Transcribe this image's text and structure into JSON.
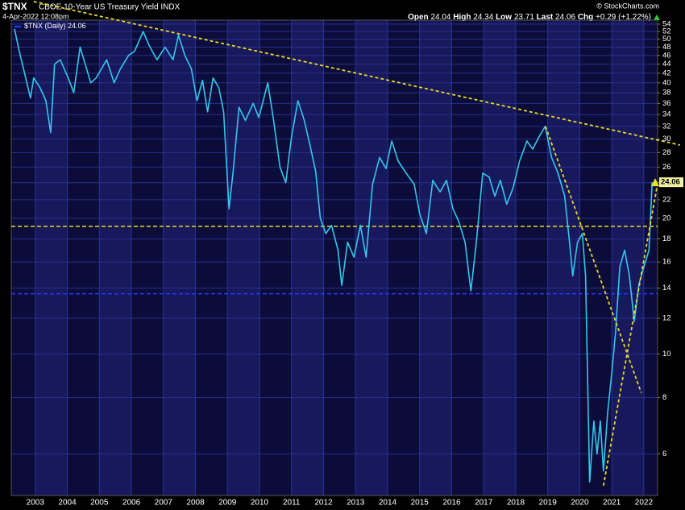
{
  "chart_data": {
    "type": "line",
    "title": "$TNX",
    "subtitle": "CBOE 10-Year US Treasury Yield INDX",
    "date": "4-Apr-2022 12:08pm",
    "source": "© StockCharts.com",
    "quote": [
      {
        "label": "Open",
        "value": 24.04
      },
      {
        "label": "High",
        "value": 24.34
      },
      {
        "label": "Low",
        "value": 23.71
      },
      {
        "label": "Last",
        "value": 24.06
      },
      {
        "label": "Chg",
        "value": "+0.29 (+1.22%)"
      }
    ],
    "log_scale": true,
    "grid": true,
    "xlim": [
      2002.25,
      2022.43
    ],
    "xticks": [
      2003,
      2004,
      2005,
      2006,
      2007,
      2008,
      2009,
      2010,
      2011,
      2012,
      2013,
      2014,
      2015,
      2016,
      2017,
      2018,
      2019,
      2020,
      2021,
      2022
    ],
    "ylim": [
      4.85,
      55.1
    ],
    "yticks": [
      54,
      52,
      50,
      48,
      46,
      44,
      42,
      40,
      38,
      36,
      34,
      32,
      30,
      28,
      26,
      24,
      22,
      20,
      18,
      16,
      14,
      12,
      10,
      8,
      6
    ],
    "series": [
      {
        "name": "$TNX (Daily)",
        "color": "#33c8ec",
        "x": [
          2002.35,
          2002.5,
          2002.7,
          2002.85,
          2002.95,
          2003.15,
          2003.33,
          2003.48,
          2003.6,
          2003.78,
          2004.03,
          2004.2,
          2004.4,
          2004.6,
          2004.73,
          2004.9,
          2005.23,
          2005.46,
          2005.66,
          2005.91,
          2006.1,
          2006.37,
          2006.55,
          2006.8,
          2007.05,
          2007.3,
          2007.47,
          2007.67,
          2007.87,
          2008.05,
          2008.22,
          2008.38,
          2008.55,
          2008.73,
          2008.88,
          2009.05,
          2009.18,
          2009.36,
          2009.56,
          2009.8,
          2009.98,
          2010.26,
          2010.44,
          2010.64,
          2010.82,
          2011.0,
          2011.2,
          2011.4,
          2011.58,
          2011.75,
          2011.9,
          2012.07,
          2012.25,
          2012.45,
          2012.57,
          2012.75,
          2012.95,
          2013.15,
          2013.33,
          2013.53,
          2013.75,
          2013.95,
          2014.13,
          2014.33,
          2014.58,
          2014.83,
          2015.0,
          2015.21,
          2015.41,
          2015.64,
          2015.84,
          2016.04,
          2016.22,
          2016.42,
          2016.6,
          2016.77,
          2016.97,
          2017.17,
          2017.35,
          2017.52,
          2017.72,
          2017.92,
          2018.12,
          2018.35,
          2018.53,
          2018.72,
          2018.92,
          2019.12,
          2019.32,
          2019.53,
          2019.68,
          2019.78,
          2019.93,
          2020.08,
          2020.18,
          2020.31,
          2020.44,
          2020.54,
          2020.64,
          2020.74,
          2020.87,
          2021.0,
          2021.12,
          2021.25,
          2021.4,
          2021.55,
          2021.7,
          2021.85,
          2022.0,
          2022.16,
          2022.22,
          2022.26
        ],
        "values": [
          52.7,
          47,
          41,
          37,
          41,
          39,
          36.5,
          31,
          44,
          45,
          41,
          38,
          48,
          43,
          40,
          41,
          45,
          40,
          43,
          46,
          47,
          52,
          48.5,
          45,
          48,
          45,
          51,
          46,
          43,
          36.5,
          40.5,
          34.5,
          41,
          39,
          34.5,
          21,
          25.5,
          35.3,
          33,
          36,
          33.5,
          40,
          33,
          26,
          24,
          30.3,
          36.5,
          33,
          29,
          25.5,
          20,
          18.5,
          19.3,
          17,
          14.2,
          17.7,
          16.4,
          19.3,
          16.4,
          23.8,
          27.3,
          25.8,
          29.7,
          26.8,
          25.2,
          23.8,
          20.5,
          18.5,
          24.3,
          22.9,
          24.3,
          21,
          19.7,
          17.7,
          13.8,
          17.7,
          25.2,
          24.7,
          22.4,
          24.3,
          21.5,
          23.4,
          26.8,
          29.7,
          28.5,
          30.3,
          32,
          27.3,
          25.2,
          22.4,
          17.7,
          14.9,
          17.7,
          18.5,
          14.9,
          5.2,
          7.1,
          6,
          7.1,
          5.5,
          7.4,
          9.1,
          11.2,
          15.6,
          17,
          14.9,
          11.8,
          14.3,
          15.6,
          17,
          21,
          24.06
        ]
      }
    ],
    "hlines": [
      {
        "value": 19.2,
        "color": "#e8d824"
      },
      {
        "value": 13.6,
        "color": "#2838ff"
      }
    ],
    "trendlines": [
      {
        "x": [
          2002.95,
          2023.13
        ],
        "y": [
          60.6,
          29.1
        ],
        "color": "#e8d824"
      },
      {
        "x": [
          2018.93,
          2021.92
        ],
        "y": [
          32,
          8.2
        ],
        "color": "#e8d824"
      },
      {
        "x": [
          2020.74,
          2022.42
        ],
        "y": [
          5.1,
          23.7
        ],
        "color": "#e8d824"
      }
    ]
  }
}
